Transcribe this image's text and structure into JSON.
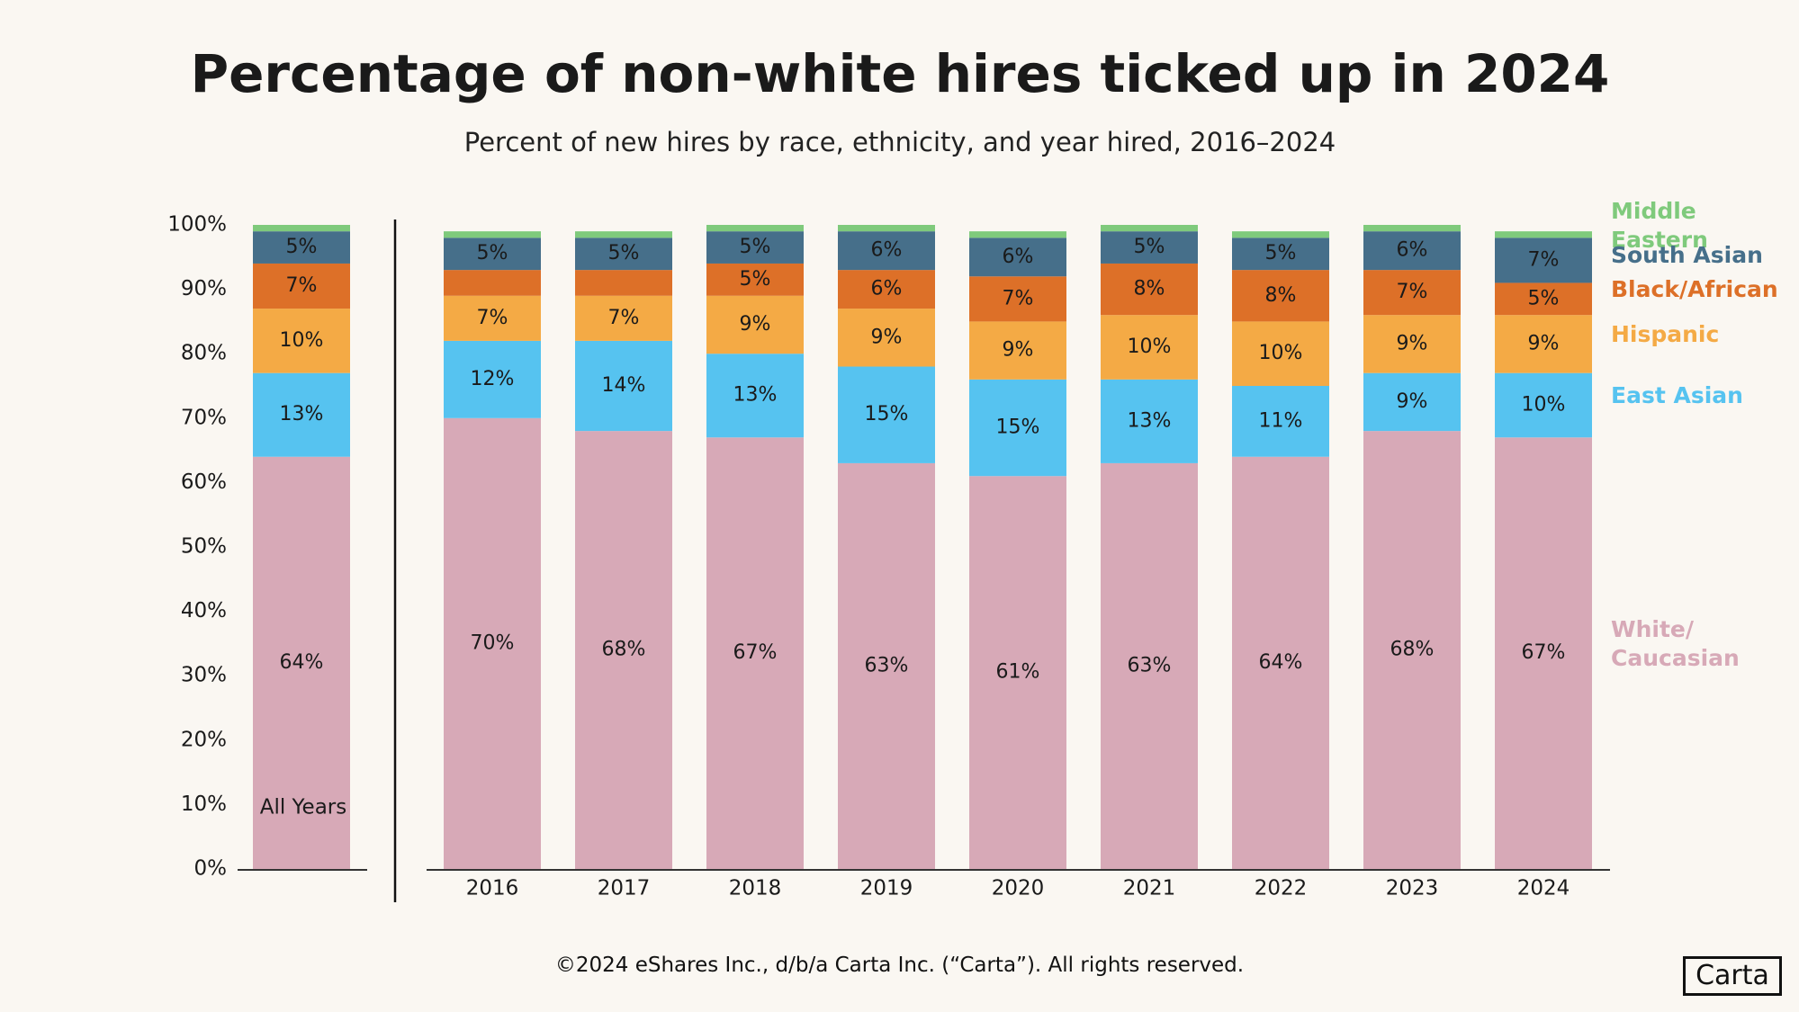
{
  "chart_data": {
    "type": "stacked-bar",
    "title": "Percentage of non-white hires ticked up in 2024",
    "subtitle": "Percent of new hires by race, ethnicity, and year hired, 2016–2024",
    "categories": [
      "All Years",
      "2016",
      "2017",
      "2018",
      "2019",
      "2020",
      "2021",
      "2022",
      "2023",
      "2024"
    ],
    "ylim": [
      0,
      100
    ],
    "yticks": [
      {
        "value": 0,
        "label": "0%"
      },
      {
        "value": 10,
        "label": "10%"
      },
      {
        "value": 20,
        "label": "20%"
      },
      {
        "value": 30,
        "label": "30%"
      },
      {
        "value": 40,
        "label": "40%"
      },
      {
        "value": 50,
        "label": "50%"
      },
      {
        "value": 60,
        "label": "60%"
      },
      {
        "value": 70,
        "label": "70%"
      },
      {
        "value": 80,
        "label": "80%"
      },
      {
        "value": 90,
        "label": "90%"
      },
      {
        "value": 100,
        "label": "100%"
      }
    ],
    "series": [
      {
        "name": "White/ Caucasian",
        "color": "#d7a9b7",
        "values": [
          64,
          70,
          68,
          67,
          63,
          61,
          63,
          64,
          68,
          67
        ],
        "value_labels": [
          "64%",
          "70%",
          "68%",
          "67%",
          "63%",
          "61%",
          "63%",
          "64%",
          "68%",
          "67%"
        ]
      },
      {
        "name": "East Asian",
        "color": "#56c3f0",
        "values": [
          13,
          12,
          14,
          13,
          15,
          15,
          13,
          11,
          9,
          10
        ],
        "value_labels": [
          "13%",
          "12%",
          "14%",
          "13%",
          "15%",
          "15%",
          "13%",
          "11%",
          "9%",
          "10%"
        ]
      },
      {
        "name": "Hispanic",
        "color": "#f4aa45",
        "values": [
          10,
          7,
          7,
          9,
          9,
          9,
          10,
          10,
          9,
          9
        ],
        "value_labels": [
          "10%",
          "7%",
          "7%",
          "9%",
          "9%",
          "9%",
          "10%",
          "10%",
          "9%",
          "9%"
        ]
      },
      {
        "name": "Black/African",
        "color": "#dd7028",
        "values": [
          7,
          4,
          4,
          5,
          6,
          7,
          8,
          8,
          7,
          5
        ],
        "value_labels": [
          "7%",
          null,
          null,
          "5%",
          "6%",
          "7%",
          "8%",
          "8%",
          "7%",
          "5%"
        ]
      },
      {
        "name": "South Asian",
        "color": "#466f8a",
        "values": [
          5,
          5,
          5,
          5,
          6,
          6,
          5,
          5,
          6,
          7
        ],
        "value_labels": [
          "5%",
          "5%",
          "5%",
          "5%",
          "6%",
          "6%",
          "5%",
          "5%",
          "6%",
          "7%"
        ]
      },
      {
        "name": "Middle Eastern",
        "color": "#7fca7c",
        "values": [
          1,
          1,
          1,
          1,
          1,
          1,
          1,
          1,
          1,
          1
        ],
        "value_labels": [
          null,
          null,
          null,
          null,
          null,
          null,
          null,
          null,
          null,
          null
        ]
      }
    ]
  },
  "footer": {
    "copyright": "©2024 eShares Inc., d/b/a Carta Inc. (“Carta”). All rights reserved.",
    "logo": "Carta"
  }
}
